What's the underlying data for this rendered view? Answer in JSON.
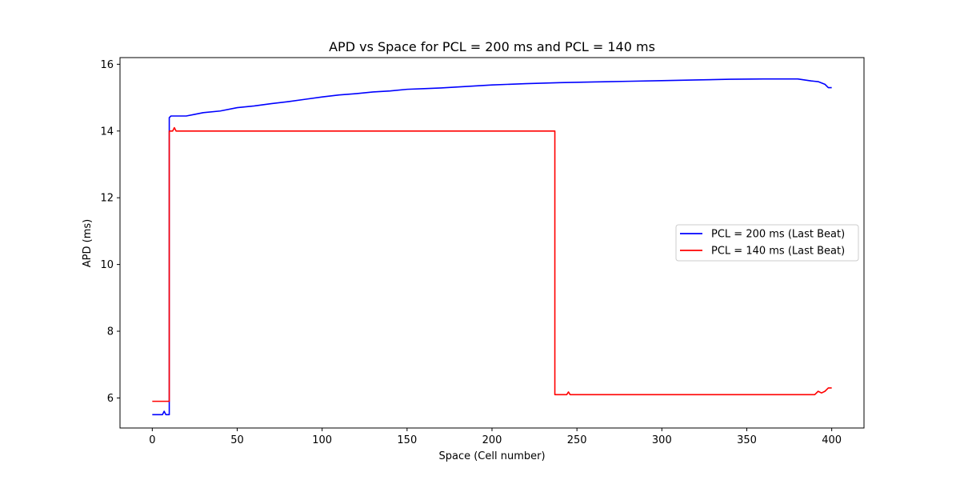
{
  "chart_data": {
    "type": "line",
    "title": "APD vs Space for PCL = 200 ms and PCL = 140 ms",
    "xlabel": "Space (Cell number)",
    "ylabel": "APD (ms)",
    "xlim": [
      -19,
      419
    ],
    "ylim": [
      5.1,
      16.2
    ],
    "xticks": [
      0,
      50,
      100,
      150,
      200,
      250,
      300,
      350,
      400
    ],
    "yticks": [
      6,
      8,
      10,
      12,
      14,
      16
    ],
    "grid": false,
    "legend_position": "center-right",
    "series": [
      {
        "name": "PCL = 200 ms (Last Beat)",
        "color": "#0000ff",
        "x": [
          0,
          6,
          7,
          8,
          10,
          10,
          11,
          15,
          20,
          25,
          30,
          40,
          50,
          60,
          70,
          80,
          90,
          100,
          110,
          120,
          130,
          140,
          150,
          160,
          170,
          180,
          190,
          200,
          220,
          240,
          260,
          280,
          300,
          320,
          340,
          360,
          380,
          388,
          392,
          396,
          398,
          400
        ],
        "y": [
          5.5,
          5.5,
          5.6,
          5.5,
          5.5,
          14.4,
          14.45,
          14.45,
          14.45,
          14.5,
          14.55,
          14.6,
          14.7,
          14.75,
          14.82,
          14.88,
          14.95,
          15.02,
          15.08,
          15.12,
          15.17,
          15.2,
          15.25,
          15.27,
          15.29,
          15.32,
          15.35,
          15.38,
          15.42,
          15.45,
          15.47,
          15.49,
          15.51,
          15.53,
          15.55,
          15.56,
          15.56,
          15.5,
          15.48,
          15.4,
          15.3,
          15.3
        ]
      },
      {
        "name": "PCL = 140 ms (Last Beat)",
        "color": "#ff0000",
        "x": [
          0,
          10,
          10,
          12,
          13,
          14,
          237,
          237,
          244,
          245,
          246,
          300,
          360,
          385,
          390,
          392,
          394,
          396,
          398,
          400
        ],
        "y": [
          5.9,
          5.9,
          14.0,
          14.0,
          14.1,
          14.0,
          14.0,
          6.1,
          6.1,
          6.18,
          6.1,
          6.1,
          6.1,
          6.1,
          6.1,
          6.2,
          6.15,
          6.2,
          6.3,
          6.3
        ]
      }
    ]
  }
}
